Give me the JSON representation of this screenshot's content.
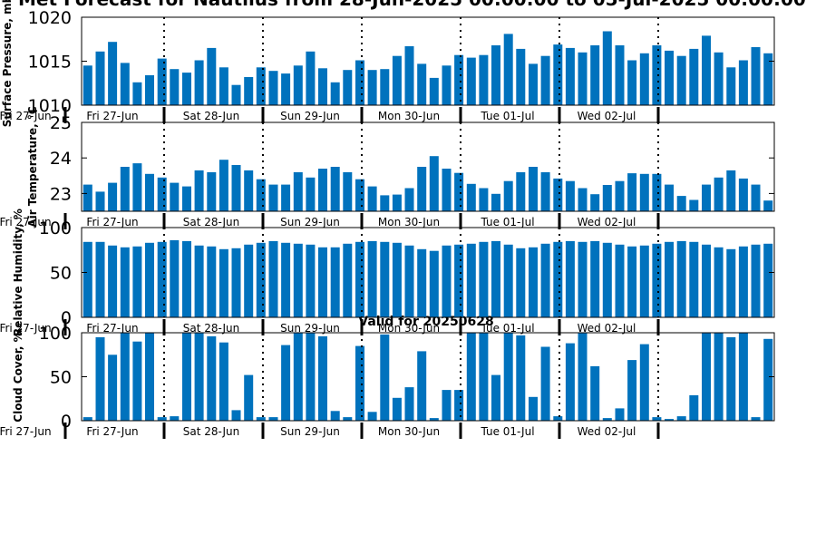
{
  "figure": {
    "title": "Met Forecast for Nautilus from 28-Jun-2025 00:00:00 to 05-Jul-2025 00:00:00",
    "subtitle": "Valid for 20250628",
    "day_labels": [
      "Fri 27-Jun",
      "Sat 28-Jun",
      "Sun 29-Jun",
      "Mon 30-Jun",
      "Tue 01-Jul",
      "Wed 02-Jul"
    ],
    "left_clipped_day_label": "Fri 27-Jun",
    "bar_color": "#0072bd"
  },
  "chart_data": [
    {
      "type": "bar",
      "ylabel": "Surface Pressure, mb",
      "ylim": [
        1010,
        1020
      ],
      "yticks": [
        "1010",
        "1015",
        "1020"
      ],
      "grid": false,
      "day_separators": "dotted vertical lines at each midnight",
      "values": [
        1014.5,
        1016.1,
        1017.2,
        1014.8,
        1012.6,
        1013.4,
        1015.3,
        1014.1,
        1013.7,
        1015.1,
        1016.5,
        1014.3,
        1012.3,
        1013.2,
        1014.3,
        1013.9,
        1013.6,
        1014.5,
        1016.1,
        1014.2,
        1012.6,
        1014.0,
        1015.1,
        1014.0,
        1014.1,
        1015.6,
        1016.7,
        1014.7,
        1013.1,
        1014.5,
        1015.7,
        1015.4,
        1015.7,
        1016.8,
        1018.1,
        1016.4,
        1014.7,
        1015.6,
        1016.9,
        1016.5,
        1016.0,
        1016.8,
        1018.4,
        1016.8,
        1015.1,
        1015.9,
        1016.8,
        1016.2,
        1015.6,
        1016.4,
        1017.9,
        1016.0,
        1014.3,
        1015.1,
        1016.6,
        1015.9
      ]
    },
    {
      "type": "bar",
      "ylabel": "Air Temperature, °C",
      "ylim": [
        22.5,
        25
      ],
      "yticks": [
        "23",
        "24",
        "25"
      ],
      "grid": false,
      "day_separators": "dotted vertical lines at each midnight",
      "values": [
        23.25,
        23.05,
        23.3,
        23.75,
        23.85,
        23.55,
        23.45,
        23.3,
        23.2,
        23.65,
        23.6,
        23.95,
        23.8,
        23.65,
        23.4,
        23.25,
        23.25,
        23.6,
        23.45,
        23.7,
        23.75,
        23.6,
        23.4,
        23.2,
        22.95,
        22.97,
        23.15,
        23.75,
        24.05,
        23.7,
        23.58,
        23.27,
        23.15,
        22.99,
        23.35,
        23.6,
        23.75,
        23.6,
        23.42,
        23.35,
        23.15,
        22.98,
        23.24,
        23.35,
        23.57,
        23.55,
        23.55,
        23.25,
        22.93,
        22.82,
        23.25,
        23.45,
        23.65,
        23.42,
        23.25,
        22.8
      ]
    },
    {
      "type": "bar",
      "ylabel": "Relative Humidity, %",
      "ylim": [
        0,
        100
      ],
      "yticks": [
        "0",
        "50",
        "100"
      ],
      "grid": false,
      "day_separators": "dotted vertical lines at each midnight",
      "values": [
        84,
        84,
        80,
        78,
        79,
        83,
        84,
        86,
        85,
        80,
        79,
        76,
        77,
        81,
        83,
        85,
        83,
        82,
        81,
        78,
        78,
        82,
        84,
        85,
        84,
        83,
        80,
        76,
        74,
        80,
        81,
        82,
        84,
        85,
        81,
        77,
        78,
        82,
        84,
        85,
        84,
        85,
        83,
        81,
        79,
        80,
        82,
        84,
        85,
        84,
        81,
        78,
        76,
        79,
        81,
        82
      ]
    },
    {
      "type": "bar",
      "ylabel": "Cloud Cover, %",
      "ylim": [
        0,
        100
      ],
      "yticks": [
        "0",
        "50",
        "100"
      ],
      "grid": false,
      "day_separators": "dotted vertical lines at each midnight",
      "values": [
        4,
        95,
        75,
        100,
        90,
        100,
        4,
        5,
        100,
        100,
        96,
        89,
        12,
        52,
        4,
        4,
        86,
        100,
        100,
        96,
        11,
        4,
        85,
        10,
        98,
        26,
        38,
        79,
        3,
        35,
        35,
        100,
        100,
        52,
        100,
        97,
        27,
        84,
        5,
        88,
        100,
        62,
        3,
        14,
        69,
        87,
        4,
        2,
        5,
        29,
        100,
        100,
        95,
        100,
        4,
        93
      ]
    }
  ]
}
